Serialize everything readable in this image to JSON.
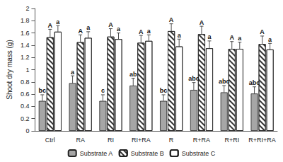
{
  "chart_data": {
    "type": "bar",
    "y_label": "Shoot dry mass (g)",
    "categories": [
      "Ctrl",
      "RA",
      "RI",
      "RI+RA",
      "R",
      "R+RA",
      "R+RI",
      "R+RI+RA"
    ],
    "series": [
      {
        "name": "Substrate A",
        "color": "#a6a6a6",
        "values": [
          0.49,
          0.78,
          0.49,
          0.74,
          0.49,
          0.67,
          0.63,
          0.61
        ],
        "errors": [
          0.1,
          0.12,
          0.1,
          0.12,
          0.1,
          0.12,
          0.11,
          0.11
        ],
        "letters": [
          "bc",
          "a",
          "c",
          "ab",
          "bc",
          "abc",
          "abc",
          "abc"
        ]
      },
      {
        "name": "Substrate B",
        "color": "#ffffff",
        "values": [
          1.53,
          1.45,
          1.54,
          1.44,
          1.63,
          1.58,
          1.34,
          1.42
        ],
        "errors": [
          0.13,
          0.12,
          0.13,
          0.12,
          0.12,
          0.13,
          0.12,
          0.13
        ],
        "letters": [
          "A",
          "A",
          "A",
          "A",
          "A",
          "A",
          "A",
          "A"
        ]
      },
      {
        "name": "Substrate C",
        "color": "#ffffff",
        "values": [
          1.62,
          1.52,
          1.5,
          1.47,
          1.38,
          1.35,
          1.34,
          1.33
        ],
        "errors": [
          0.1,
          0.1,
          0.1,
          0.1,
          0.12,
          0.12,
          0.11,
          0.1
        ],
        "letters": [
          "a",
          "a",
          "a",
          "a",
          "a",
          "a",
          "a",
          "a"
        ]
      }
    ],
    "ylim": [
      0,
      2
    ],
    "yticks": [
      0,
      0.2,
      0.4,
      0.6,
      0.8,
      1,
      1.2,
      1.4,
      1.6,
      1.8,
      2
    ],
    "grid": false,
    "legend": "bottom"
  }
}
